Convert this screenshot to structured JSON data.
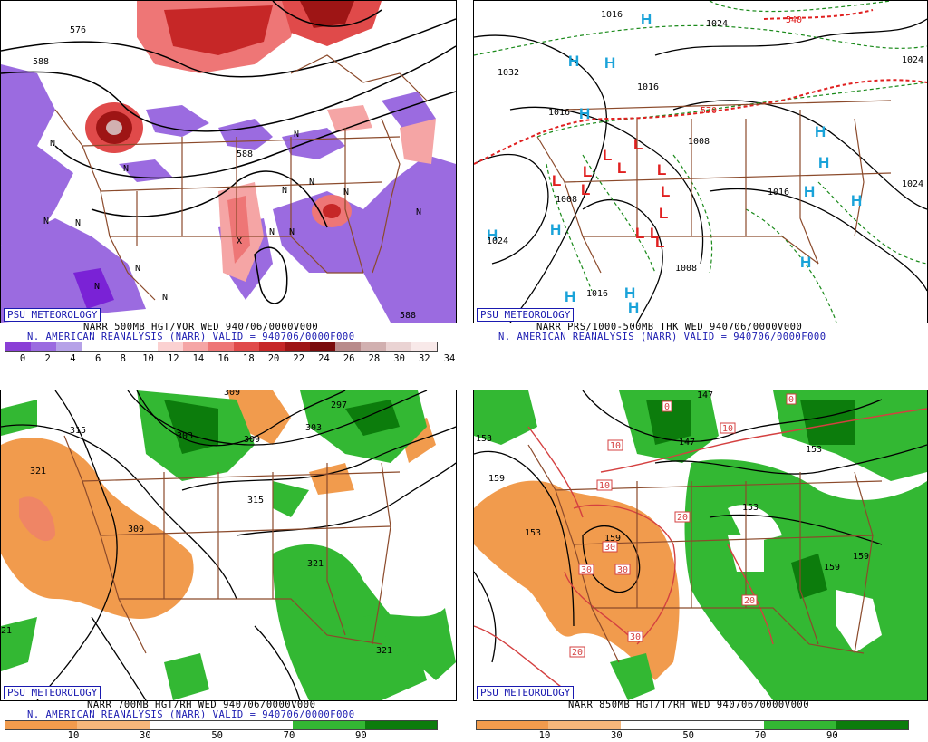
{
  "panels": {
    "top_left": {
      "watermark": "PSU METEOROLOGY",
      "title_line": "NARR 500MB HGT/VOR WED 940706/0000V000",
      "subtitle_line": "N. AMERICAN REANALYSIS (NARR) VALID = 940706/0000F000",
      "colorbar": {
        "colors": [
          "#8a3fd6",
          "#9b6be0",
          "#b6a2e8",
          "#ffffff",
          "#ffffff",
          "#ffffff",
          "#fbd1d1",
          "#f5a5a5",
          "#ee7676",
          "#e04a4a",
          "#c62727",
          "#9e1515",
          "#7a0c0c",
          "#b98b8b",
          "#d1b0b0",
          "#ead3d3",
          "#f8e9e9"
        ],
        "ticks": [
          "0",
          "2",
          "4",
          "6",
          "8",
          "10",
          "12",
          "14",
          "16",
          "18",
          "20",
          "22",
          "24",
          "26",
          "28",
          "30",
          "32",
          "34"
        ]
      },
      "contour_labels": [
        "576",
        "588",
        "588",
        "588",
        "588",
        "588"
      ]
    },
    "top_right": {
      "watermark": "PSU METEOROLOGY",
      "title_line": "NARR PRS/1000-500MB THK WED 940706/0000V000",
      "subtitle_line": "N. AMERICAN REANALYSIS (NARR) VALID = 940706/0000F000",
      "contour_labels": [
        "1016",
        "1024",
        "1032",
        "1024",
        "1016",
        "1024",
        "1008",
        "1016",
        "1024",
        "1016",
        "1008",
        "1008",
        "1016",
        "570",
        "540"
      ]
    },
    "bottom_left": {
      "watermark": "PSU METEOROLOGY",
      "title_line": "NARR 700MB HGT/RH WED 940706/0000V000",
      "subtitle_line": "N. AMERICAN REANALYSIS (NARR) VALID = 940706/0000F000",
      "colorbar": {
        "colors": [
          "#f19b4d",
          "#f5b77b",
          "#ffffff",
          "#ffffff",
          "#33b833",
          "#0c7c0c"
        ],
        "ticks": [
          "10",
          "30",
          "50",
          "70",
          "90"
        ]
      },
      "contour_labels": [
        "315",
        "321",
        "309",
        "303",
        "309",
        "297",
        "303",
        "315",
        "321",
        "321",
        "309",
        "21"
      ]
    },
    "bottom_right": {
      "watermark": "PSU METEOROLOGY",
      "title_line": "NARR 850MB HGT/T/RH WED 940706/0000V000",
      "colorbar": {
        "colors": [
          "#f19b4d",
          "#f5b77b",
          "#ffffff",
          "#ffffff",
          "#33b833",
          "#0c7c0c"
        ],
        "ticks": [
          "10",
          "30",
          "50",
          "70",
          "90"
        ]
      },
      "contour_labels": [
        "153",
        "147",
        "159",
        "159",
        "153",
        "147",
        "153",
        "159",
        "159",
        "153"
      ],
      "temp_labels": [
        "0",
        "0",
        "10",
        "10",
        "10",
        "20",
        "20",
        "30",
        "30",
        "30",
        "30",
        "20"
      ]
    }
  },
  "colors": {
    "land_outline": "#8b4a2b",
    "contour": "#000000",
    "high_marker": "#1aa3d9",
    "low_marker": "#e02020",
    "thickness_dashed": "#1a8a1a",
    "thickness_freezing": "#e02020"
  }
}
